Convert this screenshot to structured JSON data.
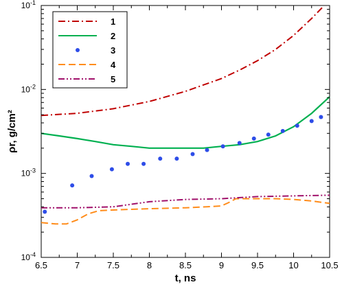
{
  "chart_data": {
    "type": "line",
    "xlabel": "t, ns",
    "ylabel": "ρr, g/cm²",
    "xlim": [
      6.5,
      10.5
    ],
    "ylim": [
      0.0001,
      0.1
    ],
    "yscale": "log",
    "x_ticks": [
      "6.5",
      "7",
      "7.5",
      "8",
      "8.5",
      "9",
      "9.5",
      "10",
      "10.5"
    ],
    "y_ticks": [
      {
        "value": 0.0001,
        "base": "10",
        "exp": "-4"
      },
      {
        "value": 0.001,
        "base": "10",
        "exp": "-3"
      },
      {
        "value": 0.01,
        "base": "10",
        "exp": "-2"
      },
      {
        "value": 0.1,
        "base": "10",
        "exp": "-1"
      }
    ],
    "grid": false,
    "legend_position": "top-left",
    "series": [
      {
        "name": "1",
        "style": "dash-dot",
        "color": "#c00000",
        "x": [
          6.5,
          7.0,
          7.5,
          8.0,
          8.5,
          9.0,
          9.25,
          9.5,
          9.75,
          10.0,
          10.25,
          10.4
        ],
        "y": [
          0.0049,
          0.0052,
          0.0059,
          0.0072,
          0.0095,
          0.0135,
          0.017,
          0.022,
          0.03,
          0.044,
          0.07,
          0.095
        ]
      },
      {
        "name": "2",
        "style": "solid",
        "color": "#00b050",
        "x": [
          6.5,
          6.75,
          7.0,
          7.25,
          7.5,
          7.75,
          8.0,
          8.25,
          8.5,
          8.75,
          9.0,
          9.25,
          9.5,
          9.75,
          10.0,
          10.25,
          10.5
        ],
        "y": [
          0.003,
          0.0028,
          0.0026,
          0.0024,
          0.0022,
          0.0021,
          0.002,
          0.002,
          0.002,
          0.002,
          0.0021,
          0.0022,
          0.0024,
          0.0028,
          0.0036,
          0.0052,
          0.0082
        ]
      },
      {
        "name": "3",
        "style": "dots",
        "color": "#2e4de8",
        "x": [
          6.55,
          6.93,
          7.2,
          7.48,
          7.7,
          7.92,
          8.15,
          8.38,
          8.6,
          8.8,
          9.02,
          9.25,
          9.45,
          9.65,
          9.85,
          10.05,
          10.25,
          10.38
        ],
        "y": [
          0.00035,
          0.00072,
          0.00093,
          0.00112,
          0.0013,
          0.0013,
          0.0015,
          0.0015,
          0.0017,
          0.0019,
          0.0021,
          0.0023,
          0.0026,
          0.0029,
          0.0032,
          0.0037,
          0.0042,
          0.0047
        ]
      },
      {
        "name": "4",
        "style": "dashed",
        "color": "#ff8c1a",
        "x": [
          6.5,
          6.7,
          6.85,
          7.0,
          7.15,
          7.3,
          7.6,
          8.0,
          8.5,
          8.8,
          9.0,
          9.1,
          9.2,
          9.5,
          9.75,
          10.0,
          10.25,
          10.5
        ],
        "y": [
          0.00026,
          0.00025,
          0.00025,
          0.00028,
          0.00033,
          0.00036,
          0.00037,
          0.00038,
          0.00039,
          0.0004,
          0.00041,
          0.00045,
          0.0005,
          0.0005,
          0.0005,
          0.00049,
          0.00047,
          0.00044
        ]
      },
      {
        "name": "5",
        "style": "dash-dot-dot",
        "color": "#a0106a",
        "x": [
          6.5,
          7.0,
          7.5,
          8.0,
          8.5,
          9.0,
          9.5,
          10.0,
          10.5
        ],
        "y": [
          0.00039,
          0.00039,
          0.0004,
          0.00046,
          0.00049,
          0.0005,
          0.00053,
          0.00054,
          0.00055
        ]
      }
    ]
  }
}
